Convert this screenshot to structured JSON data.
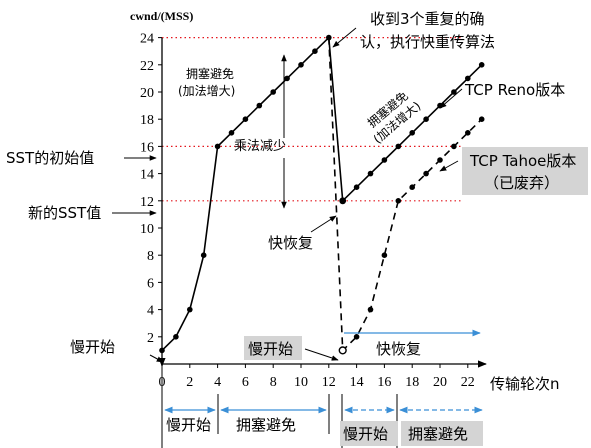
{
  "chart_data": {
    "type": "line",
    "ylabel": "cwnd/(MSS)",
    "xlabel": "传输轮次n",
    "xlim": [
      0,
      25
    ],
    "ylim": [
      0,
      26
    ],
    "x_ticks": [
      0,
      2,
      4,
      6,
      8,
      10,
      12,
      14,
      16,
      18,
      20,
      22
    ],
    "y_ticks": [
      2,
      4,
      6,
      8,
      10,
      12,
      14,
      16,
      18,
      20,
      22,
      24
    ],
    "series": [
      {
        "name": "TCP Reno版本",
        "style": "solid",
        "x": [
          0,
          1,
          2,
          3,
          4,
          5,
          6,
          7,
          8,
          9,
          10,
          11,
          12,
          13,
          14,
          15,
          16,
          17,
          18,
          19,
          20,
          21,
          22,
          23
        ],
        "y": [
          1,
          2,
          4,
          8,
          16,
          17,
          18,
          19,
          20,
          21,
          22,
          23,
          24,
          12,
          13,
          14,
          15,
          16,
          17,
          18,
          19,
          20,
          21,
          22
        ]
      },
      {
        "name": "TCP Tahoe版本",
        "style": "dashed",
        "x": [
          12,
          13,
          14,
          15,
          16,
          17,
          18,
          19,
          20,
          21,
          22,
          23
        ],
        "y": [
          24,
          1,
          2,
          4,
          8,
          12,
          13,
          14,
          15,
          16,
          17,
          18
        ]
      }
    ],
    "reference_lines": [
      {
        "y": 24,
        "color": "#e4161d",
        "style": "dotted"
      },
      {
        "y": 16,
        "color": "#e4161d",
        "style": "dotted"
      },
      {
        "y": 12,
        "color": "#e4161d",
        "style": "dotted"
      }
    ]
  },
  "labels": {
    "receive_dupacks": [
      "收到3个重复的确",
      "认，执行快重传算法"
    ],
    "ca_left": [
      "拥塞避免",
      "(加法增大)"
    ],
    "multiplicative_decrease": "乘法减少",
    "ca_right": [
      "拥塞避免",
      "(加法增大)"
    ],
    "reno": "TCP Reno版本",
    "tahoe": [
      "TCP Tahoe版本",
      "（已废弃）"
    ],
    "sst_initial": "SST的初始值",
    "new_sst": "新的SST值",
    "fast_recovery_point": "快恢复",
    "slow_start_origin": "慢开始",
    "slow_start_box": "慢开始",
    "fast_recovery_arrow": "快恢复"
  },
  "phases": {
    "row1": [
      "慢开始",
      "拥塞避免"
    ],
    "row2": [
      "慢开始",
      "拥塞避免"
    ]
  },
  "colors": {
    "reference": "#e4161d",
    "phase_arrow": "#3b8fd6",
    "label_box": "#d4d4d4",
    "curve": "#000000"
  }
}
